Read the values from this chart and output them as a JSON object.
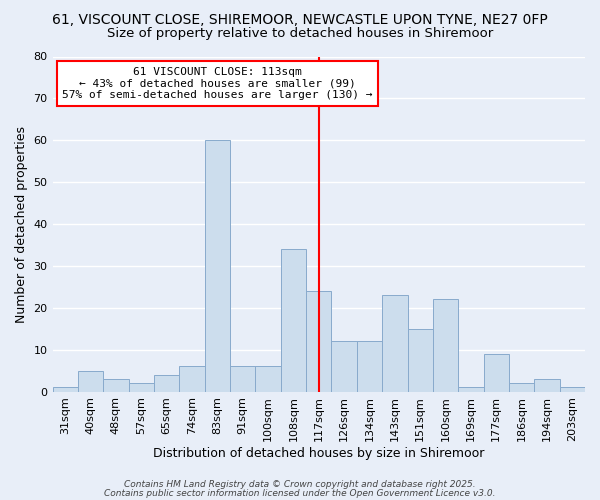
{
  "title_line1": "61, VISCOUNT CLOSE, SHIREMOOR, NEWCASTLE UPON TYNE, NE27 0FP",
  "title_line2": "Size of property relative to detached houses in Shiremoor",
  "xlabel": "Distribution of detached houses by size in Shiremoor",
  "ylabel": "Number of detached properties",
  "categories": [
    "31sqm",
    "40sqm",
    "48sqm",
    "57sqm",
    "65sqm",
    "74sqm",
    "83sqm",
    "91sqm",
    "100sqm",
    "108sqm",
    "117sqm",
    "126sqm",
    "134sqm",
    "143sqm",
    "151sqm",
    "160sqm",
    "169sqm",
    "177sqm",
    "186sqm",
    "194sqm",
    "203sqm"
  ],
  "values": [
    1,
    5,
    3,
    2,
    4,
    6,
    60,
    6,
    6,
    34,
    24,
    12,
    12,
    23,
    15,
    22,
    1,
    9,
    2,
    3,
    1
  ],
  "bar_color": "#ccdded",
  "bar_edge_color": "#88aacc",
  "annotation_text": "61 VISCOUNT CLOSE: 113sqm\n← 43% of detached houses are smaller (99)\n57% of semi-detached houses are larger (130) →",
  "vline_x_index": 10.0,
  "vline_color": "red",
  "annotation_box_color": "white",
  "annotation_box_edge": "red",
  "ylim": [
    0,
    80
  ],
  "yticks": [
    0,
    10,
    20,
    30,
    40,
    50,
    60,
    70,
    80
  ],
  "background_color": "#e8eef8",
  "grid_color": "white",
  "footer_line1": "Contains HM Land Registry data © Crown copyright and database right 2025.",
  "footer_line2": "Contains public sector information licensed under the Open Government Licence v3.0.",
  "title_fontsize": 10,
  "subtitle_fontsize": 9.5,
  "label_fontsize": 9,
  "tick_fontsize": 8,
  "annot_fontsize": 8,
  "footer_fontsize": 6.5
}
